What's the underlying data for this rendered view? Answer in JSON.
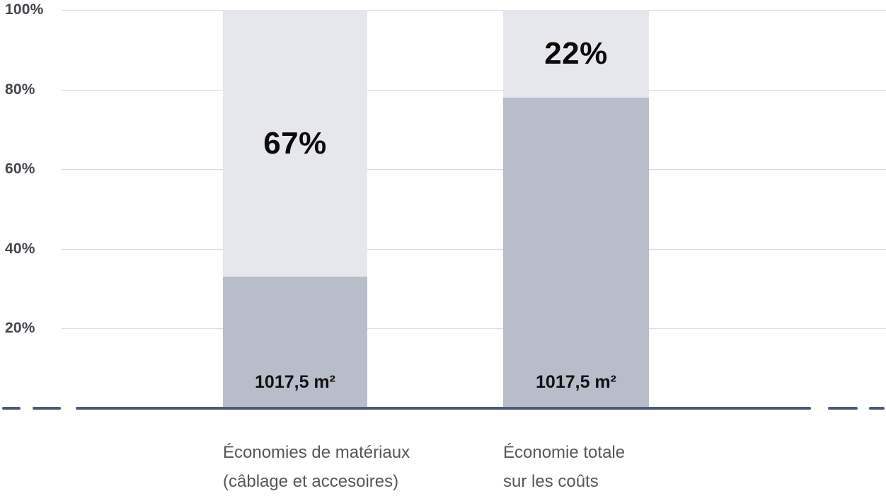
{
  "chart_data": {
    "type": "bar",
    "subtype": "stacked-percentage-column",
    "title": "",
    "xlabel": "",
    "ylabel": "",
    "ylim": [
      0,
      100
    ],
    "grid": true,
    "legend": "none",
    "yticks": [
      "100%",
      "80%",
      "60%",
      "40%",
      "20%"
    ],
    "bars": [
      {
        "category_line1": "Économies de matériaux",
        "category_line2": "(câblage et accesoires)",
        "upper_segment_pct": 67,
        "upper_segment_label": "67%",
        "lower_segment_pct": 33,
        "lower_segment_label": "1017,5 m²"
      },
      {
        "category_line1": "Économie totale",
        "category_line2": "sur les coûts",
        "upper_segment_pct": 22,
        "upper_segment_label": "22%",
        "lower_segment_pct": 78,
        "lower_segment_label": "1017,5 m²"
      }
    ],
    "colors": {
      "upper_segment": "#e6e7ec",
      "lower_segment": "#b8bdca",
      "gridline": "#d6d9e3",
      "baseline": "#4e5c79",
      "tick_label": "#43464b",
      "category_label": "#54575c",
      "value_label": "#0a0a0a",
      "background": "#ffffff"
    }
  }
}
